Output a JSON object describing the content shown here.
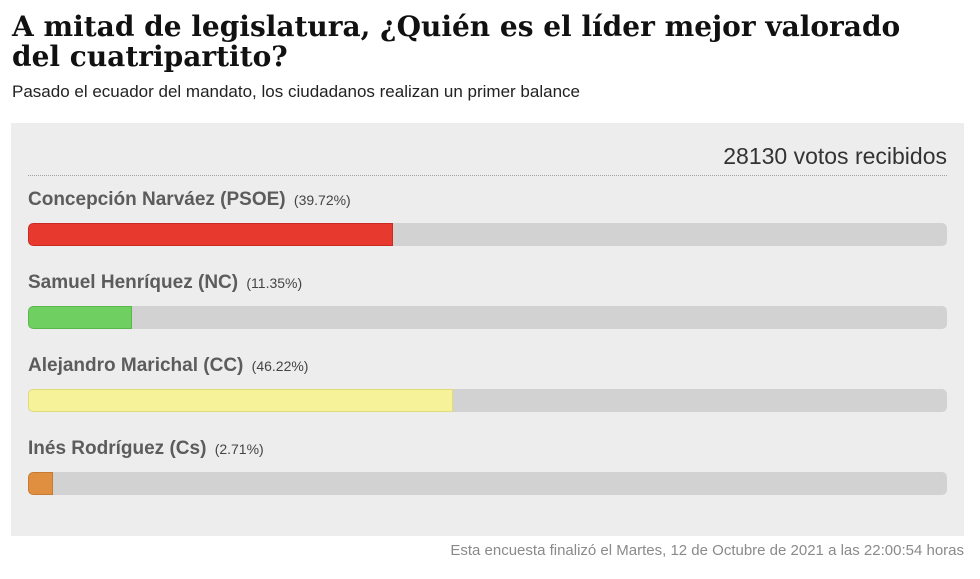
{
  "poll": {
    "title": "A mitad de legislatura, ¿Quién es el líder mejor valorado del cuatripartito?",
    "subtitle": "Pasado el ecuador del mandato, los ciudadanos realizan un primer balance",
    "votes_text": "28130 votos recibidos",
    "footer": "Esta encuesta finalizó el Martes, 12 de Octubre de 2021 a las 22:00:54 horas",
    "options": [
      {
        "name": "Concepción Narváez (PSOE)",
        "percent_label": "(39.72%)",
        "percent": 39.72,
        "color": "#e8392f",
        "border": "#c92a22"
      },
      {
        "name": "Samuel Henríquez (NC)",
        "percent_label": "(11.35%)",
        "percent": 11.35,
        "color": "#6fcf60",
        "border": "#58b84a"
      },
      {
        "name": "Alejandro Marichal (CC)",
        "percent_label": "(46.22%)",
        "percent": 46.22,
        "color": "#f6f29a",
        "border": "#e2dc78"
      },
      {
        "name": "Inés Rodríguez (Cs)",
        "percent_label": "(2.71%)",
        "percent": 2.71,
        "color": "#e08e3f",
        "border": "#c77a30"
      }
    ]
  }
}
